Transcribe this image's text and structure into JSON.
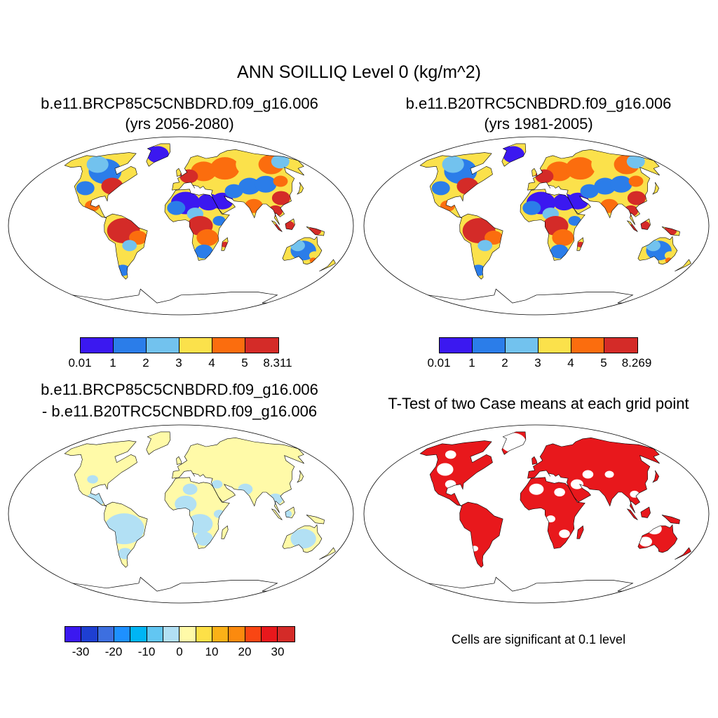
{
  "figure": {
    "title": "ANN SOILLIQ Level 0 (kg/m^2)",
    "note": "Cells are significant at 0.1 level"
  },
  "panels": [
    {
      "title_line1": "b.e11.BRCP85C5CNBDRD.f09_g16.006",
      "title_line2": "(yrs 2056-2080)"
    },
    {
      "title_line1": "b.e11.B20TRC5CNBDRD.f09_g16.006",
      "title_line2": "(yrs 1981-2005)"
    },
    {
      "title_line1": "b.e11.BRCP85C5CNBDRD.f09_g16.006",
      "title_line2": "- b.e11.B20TRC5CNBDRD.f09_g16.006"
    },
    {
      "title_line1": "T-Test of two Case means at each grid point"
    }
  ],
  "colorbars": {
    "case1": {
      "labels": [
        "0.01",
        "1",
        "2",
        "3",
        "4",
        "5",
        "8.311"
      ],
      "colors": [
        "#3b18f0",
        "#2b7de9",
        "#72c2ee",
        "#fbe14b",
        "#fb6d0e",
        "#d42b28"
      ]
    },
    "case2": {
      "labels": [
        "0.01",
        "1",
        "2",
        "3",
        "4",
        "5",
        "8.269"
      ],
      "colors": [
        "#3b18f0",
        "#2b7de9",
        "#72c2ee",
        "#fbe14b",
        "#fb6d0e",
        "#d42b28"
      ]
    },
    "diff": {
      "labels": [
        "-30",
        "-20",
        "-10",
        "0",
        "10",
        "20",
        "30"
      ],
      "colors": [
        "#3b18f0",
        "#1e3fd2",
        "#3d6fe0",
        "#1e90ff",
        "#00b5f5",
        "#62c6f2",
        "#b2e0f4",
        "#fffaa8",
        "#fde047",
        "#fbb117",
        "#fb8a0e",
        "#f94613",
        "#e8181c",
        "#d42b28"
      ]
    }
  },
  "chart_data": [
    {
      "type": "heatmap",
      "title": "b.e11.BRCP85C5CNBDRD.f09_g16.006 (yrs 2056-2080)",
      "variable": "ANN SOILLIQ Level 0 (kg/m^2)",
      "colorbar_levels": [
        0.01,
        1,
        2,
        3,
        4,
        5,
        8.311
      ],
      "regions": {
        "Sahara": 0.5,
        "Greenland": 0.5,
        "Siberia": 2.5,
        "Europe": 4.5,
        "Amazon": 5.5,
        "Congo": 5.5,
        "Australia interior": 1.5,
        "Maritime Continent": 6.5,
        "Eastern North America": 4.5,
        "India": 4.0
      }
    },
    {
      "type": "heatmap",
      "title": "b.e11.B20TRC5CNBDRD.f09_g16.006 (yrs 1981-2005)",
      "variable": "ANN SOILLIQ Level 0 (kg/m^2)",
      "colorbar_levels": [
        0.01,
        1,
        2,
        3,
        4,
        5,
        8.269
      ],
      "regions": {
        "Sahara": 0.5,
        "Greenland": 0.5,
        "Siberia": 2.5,
        "Europe": 4.5,
        "Amazon": 5.5,
        "Congo": 5.5,
        "Australia interior": 1.5,
        "Maritime Continent": 6.5,
        "Eastern North America": 4.5,
        "India": 4.0
      }
    },
    {
      "type": "heatmap",
      "title": "b.e11.BRCP85C5CNBDRD.f09_g16.006 - b.e11.B20TRC5CNBDRD.f09_g16.006",
      "colorbar_levels": [
        -30,
        -25,
        -20,
        -15,
        -10,
        -5,
        0,
        5,
        10,
        15,
        20,
        25,
        30
      ],
      "regions": {
        "Northern high latitudes": 2,
        "Tropics": -2,
        "Australia": -2,
        "Sahel": -2
      }
    },
    {
      "type": "heatmap",
      "title": "T-Test of two Case means at each grid point",
      "significance_level": 0.1,
      "regions": {
        "Northern Eurasia": "significant",
        "Amazon": "significant",
        "Africa": "mostly significant",
        "Australia south-east": "significant",
        "Western North America": "partly significant"
      }
    }
  ]
}
